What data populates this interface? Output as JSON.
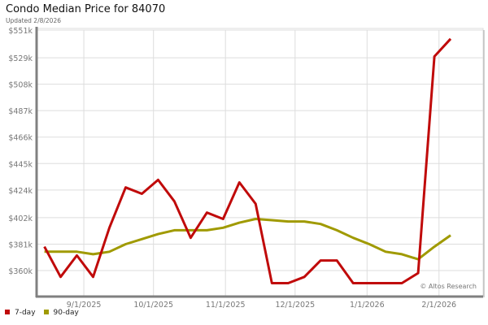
{
  "chart_data": {
    "type": "line",
    "title": "Condo Median Price for 84070",
    "subtitle": "Updated 2/8/2026",
    "xlabel": "",
    "ylabel": "",
    "ylim": [
      340,
      551
    ],
    "yticks": [
      360,
      381,
      402,
      424,
      445,
      466,
      487,
      508,
      529,
      551
    ],
    "ytick_labels": [
      "$360k",
      "$381k",
      "$402k",
      "$424k",
      "$445k",
      "$466k",
      "$487k",
      "$508k",
      "$529k",
      "$551k"
    ],
    "xlim": [
      "2025-08-12",
      "2026-02-20"
    ],
    "xticks": [
      "2025-09-01",
      "2025-10-01",
      "2025-11-01",
      "2025-12-01",
      "2026-01-01",
      "2026-02-01"
    ],
    "xtick_labels": [
      "9/1/2025",
      "10/1/2025",
      "11/1/2025",
      "12/1/2025",
      "1/1/2026",
      "2/1/2026"
    ],
    "grid": true,
    "legend_position": "bottom-left",
    "annotation": "© Altos Research",
    "x": [
      "2025-08-15",
      "2025-08-22",
      "2025-08-29",
      "2025-09-05",
      "2025-09-12",
      "2025-09-19",
      "2025-09-26",
      "2025-10-03",
      "2025-10-10",
      "2025-10-17",
      "2025-10-24",
      "2025-10-31",
      "2025-11-07",
      "2025-11-14",
      "2025-11-21",
      "2025-11-28",
      "2025-12-05",
      "2025-12-12",
      "2025-12-19",
      "2025-12-26",
      "2026-01-02",
      "2026-01-09",
      "2026-01-16",
      "2026-01-23",
      "2026-01-30",
      "2026-02-06"
    ],
    "series": [
      {
        "name": "7-day",
        "color": "#c00a0a",
        "values": [
          379,
          355,
          372,
          355,
          394,
          426,
          421,
          432,
          415,
          386,
          406,
          401,
          430,
          413,
          350,
          350,
          355,
          368,
          368,
          350,
          350,
          350,
          350,
          358,
          530,
          544
        ]
      },
      {
        "name": "90-day",
        "color": "#a09a00",
        "values": [
          375,
          375,
          375,
          373,
          375,
          381,
          385,
          389,
          392,
          392,
          392,
          394,
          398,
          401,
          400,
          399,
          399,
          397,
          392,
          386,
          381,
          375,
          373,
          369,
          379,
          388
        ]
      }
    ]
  }
}
